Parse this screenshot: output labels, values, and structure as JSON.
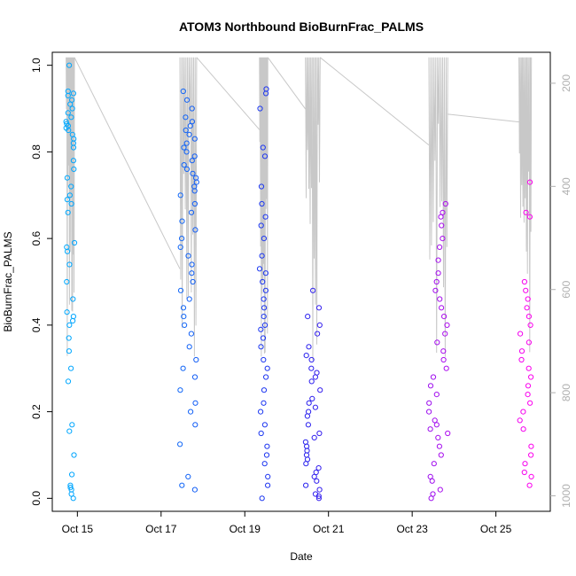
{
  "chart_data": {
    "type": "scatter",
    "title": "ATOM3 Northbound BioBurnFrac_PALMS",
    "xlabel": "Date",
    "ylabel": "BioBurnFrac_PALMS",
    "x_ticks": [
      "Oct 15",
      "Oct 17",
      "Oct 19",
      "Oct 21",
      "Oct 23",
      "Oct 25"
    ],
    "x_tick_values": [
      15,
      17,
      19,
      21,
      23,
      25
    ],
    "xlim": [
      14.4,
      26.3
    ],
    "ylim": [
      -0.03,
      1.03
    ],
    "y_ticks": [
      "0.0",
      "0.2",
      "0.4",
      "0.6",
      "0.8",
      "1.0"
    ],
    "y_tick_values": [
      0,
      0.2,
      0.4,
      0.6,
      0.8,
      1.0
    ],
    "y2_ticks": [
      "200",
      "400",
      "600",
      "800",
      "1000"
    ],
    "y2_tick_values": [
      200,
      400,
      600,
      800,
      1000
    ],
    "y2lim": [
      1030,
      140
    ],
    "grid": false,
    "colors": {
      "start": "#00aaff",
      "mid": "#2222ee",
      "end": "#ff00ee",
      "pressure_line": "#c8c8c8"
    },
    "flights": [
      {
        "x_range": [
          14.73,
          14.93
        ],
        "y_values": [
          0,
          0.01,
          0.02,
          0.025,
          0.03,
          0.055,
          0.1,
          0.155,
          0.17,
          0.27,
          0.3,
          0.34,
          0.37,
          0.4,
          0.41,
          0.42,
          0.43,
          0.46,
          0.5,
          0.54,
          0.57,
          0.58,
          0.59,
          0.66,
          0.68,
          0.69,
          0.7,
          0.72,
          0.74,
          0.76,
          0.78,
          0.81,
          0.82,
          0.83,
          0.84,
          0.85,
          0.855,
          0.86,
          0.865,
          0.87,
          0.88,
          0.89,
          0.9,
          0.91,
          0.92,
          0.93,
          0.935,
          0.94,
          1.0
        ]
      },
      {
        "x_range": [
          17.45,
          17.85
        ],
        "y_values": [
          0.02,
          0.03,
          0.05,
          0.125,
          0.17,
          0.2,
          0.22,
          0.25,
          0.28,
          0.3,
          0.32,
          0.35,
          0.38,
          0.4,
          0.42,
          0.44,
          0.46,
          0.48,
          0.5,
          0.52,
          0.54,
          0.56,
          0.58,
          0.6,
          0.62,
          0.64,
          0.66,
          0.68,
          0.7,
          0.71,
          0.72,
          0.73,
          0.74,
          0.75,
          0.76,
          0.77,
          0.78,
          0.79,
          0.8,
          0.81,
          0.82,
          0.83,
          0.84,
          0.85,
          0.86,
          0.87,
          0.88,
          0.9,
          0.92,
          0.94
        ]
      },
      {
        "x_range": [
          19.35,
          19.55
        ],
        "y_values": [
          0,
          0.03,
          0.05,
          0.08,
          0.1,
          0.12,
          0.15,
          0.17,
          0.2,
          0.22,
          0.25,
          0.28,
          0.3,
          0.32,
          0.35,
          0.37,
          0.39,
          0.4,
          0.42,
          0.44,
          0.46,
          0.48,
          0.5,
          0.52,
          0.53,
          0.56,
          0.6,
          0.63,
          0.65,
          0.68,
          0.72,
          0.79,
          0.81,
          0.9,
          0.935,
          0.945
        ]
      },
      {
        "x_range": [
          20.45,
          20.8
        ],
        "y_values": [
          0,
          0.005,
          0.01,
          0.02,
          0.03,
          0.04,
          0.05,
          0.06,
          0.07,
          0.08,
          0.09,
          0.1,
          0.11,
          0.12,
          0.13,
          0.14,
          0.15,
          0.17,
          0.19,
          0.2,
          0.21,
          0.22,
          0.23,
          0.25,
          0.27,
          0.28,
          0.29,
          0.3,
          0.32,
          0.33,
          0.35,
          0.38,
          0.4,
          0.42,
          0.44,
          0.48
        ]
      },
      {
        "x_range": [
          23.4,
          23.85
        ],
        "y_values": [
          0,
          0.01,
          0.02,
          0.04,
          0.05,
          0.08,
          0.1,
          0.12,
          0.14,
          0.15,
          0.16,
          0.17,
          0.18,
          0.2,
          0.22,
          0.24,
          0.26,
          0.28,
          0.3,
          0.32,
          0.34,
          0.36,
          0.38,
          0.4,
          0.42,
          0.44,
          0.46,
          0.48,
          0.5,
          0.52,
          0.55,
          0.58,
          0.6,
          0.63,
          0.65,
          0.66,
          0.68
        ]
      },
      {
        "x_range": [
          25.55,
          25.85
        ],
        "y_values": [
          0.03,
          0.05,
          0.06,
          0.08,
          0.1,
          0.12,
          0.16,
          0.18,
          0.2,
          0.22,
          0.24,
          0.26,
          0.28,
          0.3,
          0.32,
          0.34,
          0.36,
          0.38,
          0.4,
          0.42,
          0.44,
          0.46,
          0.48,
          0.5,
          0.65,
          0.66,
          0.73
        ]
      }
    ]
  }
}
